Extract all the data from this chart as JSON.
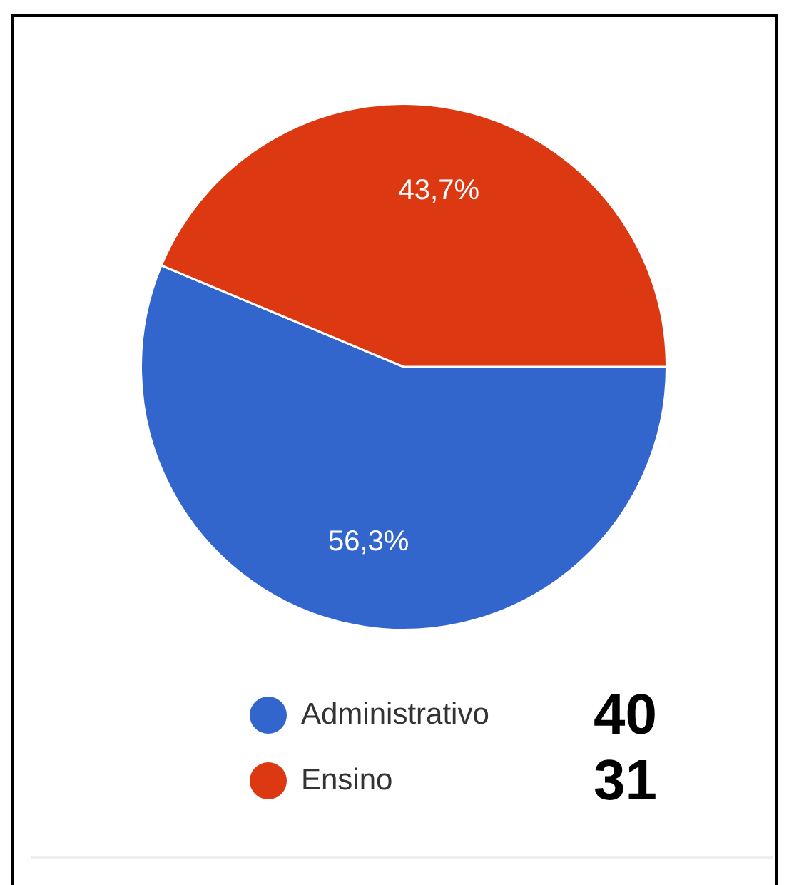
{
  "chart_data": {
    "type": "pie",
    "categories": [
      "Administrativo",
      "Ensino"
    ],
    "values": [
      56.3,
      43.7
    ],
    "colors": [
      "#3366cc",
      "#dc3912"
    ],
    "value_labels": [
      "56,3%",
      "43,7%"
    ],
    "legend": "bottom",
    "annotations": [
      "40",
      "31"
    ]
  }
}
